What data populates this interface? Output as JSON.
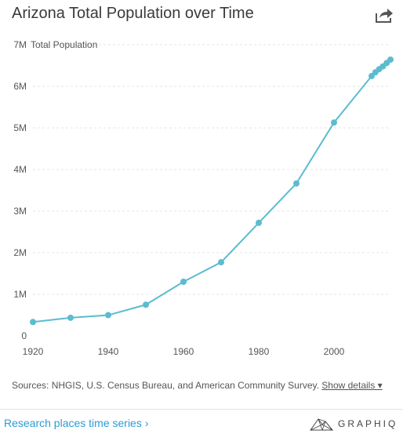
{
  "title": "Arizona Total Population over Time",
  "sources_text": "Sources: NHGIS, U.S. Census Bureau, and American Community Survey.",
  "show_details": "Show details ▾",
  "research_link": "Research places time series ›",
  "brand": "GRAPHIQ",
  "colors": {
    "line": "#5bbccf",
    "grid": "#e4e4e4",
    "link": "#2a9cd4"
  },
  "chart_data": {
    "type": "line",
    "ylabel": "Total Population",
    "xlim": [
      1920,
      2015
    ],
    "ylim": [
      0,
      7000000
    ],
    "x_ticks": [
      1920,
      1940,
      1960,
      1980,
      2000
    ],
    "y_ticks": [
      {
        "value": 0,
        "label": "0"
      },
      {
        "value": 1000000,
        "label": "1M"
      },
      {
        "value": 2000000,
        "label": "2M"
      },
      {
        "value": 3000000,
        "label": "3M"
      },
      {
        "value": 4000000,
        "label": "4M"
      },
      {
        "value": 5000000,
        "label": "5M"
      },
      {
        "value": 6000000,
        "label": "6M"
      },
      {
        "value": 7000000,
        "label": "7M"
      }
    ],
    "grid": true,
    "series": [
      {
        "x": [
          1920,
          1930,
          1940,
          1950,
          1960,
          1970,
          1980,
          1990,
          2000,
          2010,
          2011,
          2012,
          2013,
          2014,
          2015
        ],
        "y": [
          334162,
          435573,
          499261,
          749587,
          1302161,
          1770900,
          2718215,
          3665228,
          5130632,
          6246816,
          6337373,
          6413737,
          6479703,
          6561516,
          6641928
        ]
      }
    ]
  }
}
